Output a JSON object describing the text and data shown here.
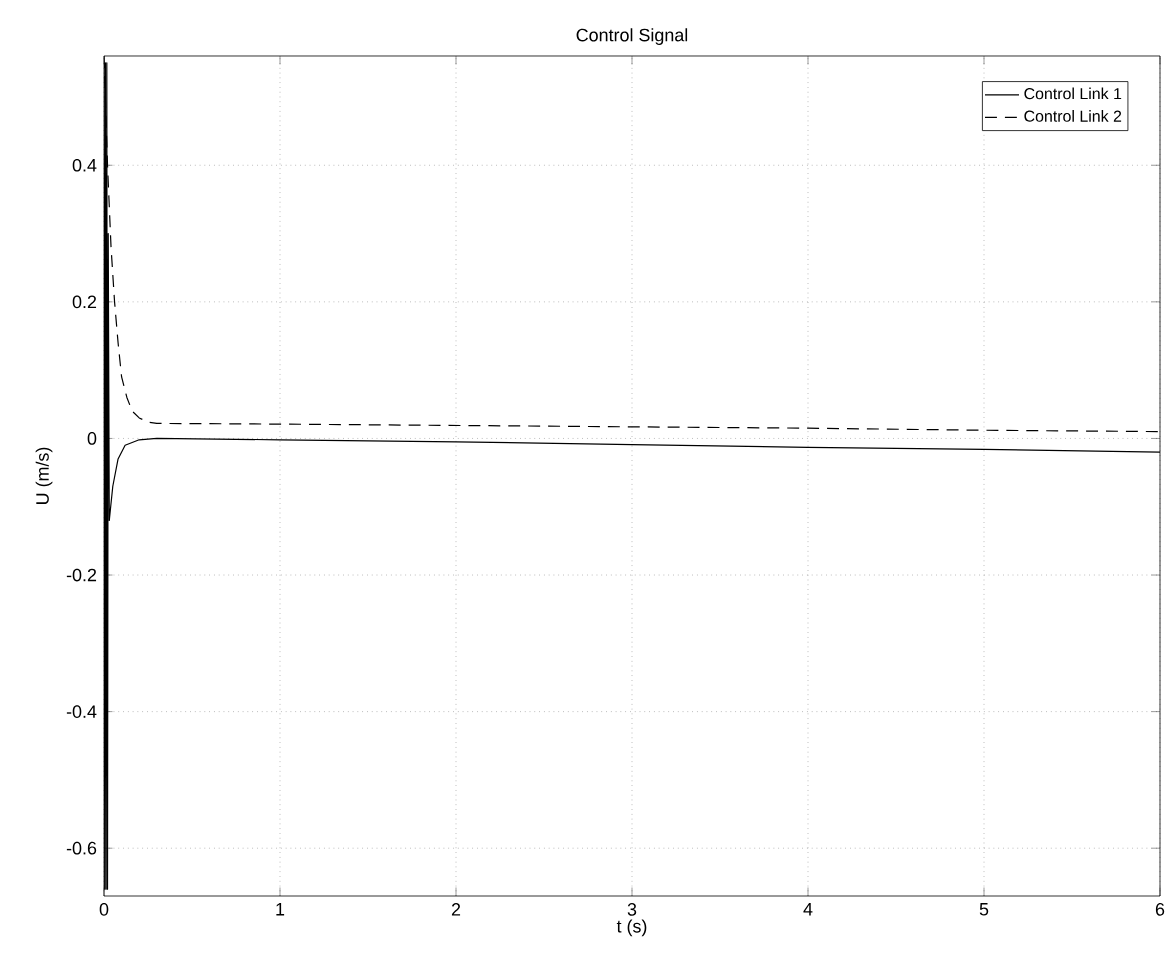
{
  "chart_data": {
    "type": "line",
    "title": "Control Signal",
    "xlabel": "t (s)",
    "ylabel": "U (m/s)",
    "xlim": [
      0,
      6
    ],
    "ylim": [
      -0.67,
      0.56
    ],
    "xticks": [
      0,
      1,
      2,
      3,
      4,
      5,
      6
    ],
    "yticks": [
      -0.6,
      -0.4,
      -0.2,
      0,
      0.2,
      0.4
    ],
    "grid": true,
    "legend": "top right",
    "series": [
      {
        "name": "Control Link 1",
        "color": "#000000",
        "line_style": "solid",
        "x": [
          0,
          0.004,
          0.008,
          0.012,
          0.016,
          0.02,
          0.024,
          0.03,
          0.05,
          0.08,
          0.12,
          0.2,
          0.3,
          1,
          2,
          3,
          4,
          5,
          6
        ],
        "values": [
          0.55,
          -0.66,
          0.55,
          -0.66,
          0.55,
          -0.66,
          0.3,
          -0.12,
          -0.07,
          -0.03,
          -0.01,
          -0.002,
          0,
          -0.002,
          -0.005,
          -0.009,
          -0.013,
          -0.016,
          -0.02
        ]
      },
      {
        "name": "Control Link 2",
        "color": "#000000",
        "line_style": "dashed",
        "x": [
          0,
          0.02,
          0.04,
          0.06,
          0.08,
          0.1,
          0.13,
          0.16,
          0.2,
          0.25,
          0.3,
          1,
          2,
          3,
          4,
          5,
          6
        ],
        "values": [
          0.56,
          0.4,
          0.28,
          0.2,
          0.14,
          0.09,
          0.06,
          0.04,
          0.03,
          0.024,
          0.022,
          0.021,
          0.019,
          0.017,
          0.015,
          0.012,
          0.01
        ]
      }
    ]
  }
}
